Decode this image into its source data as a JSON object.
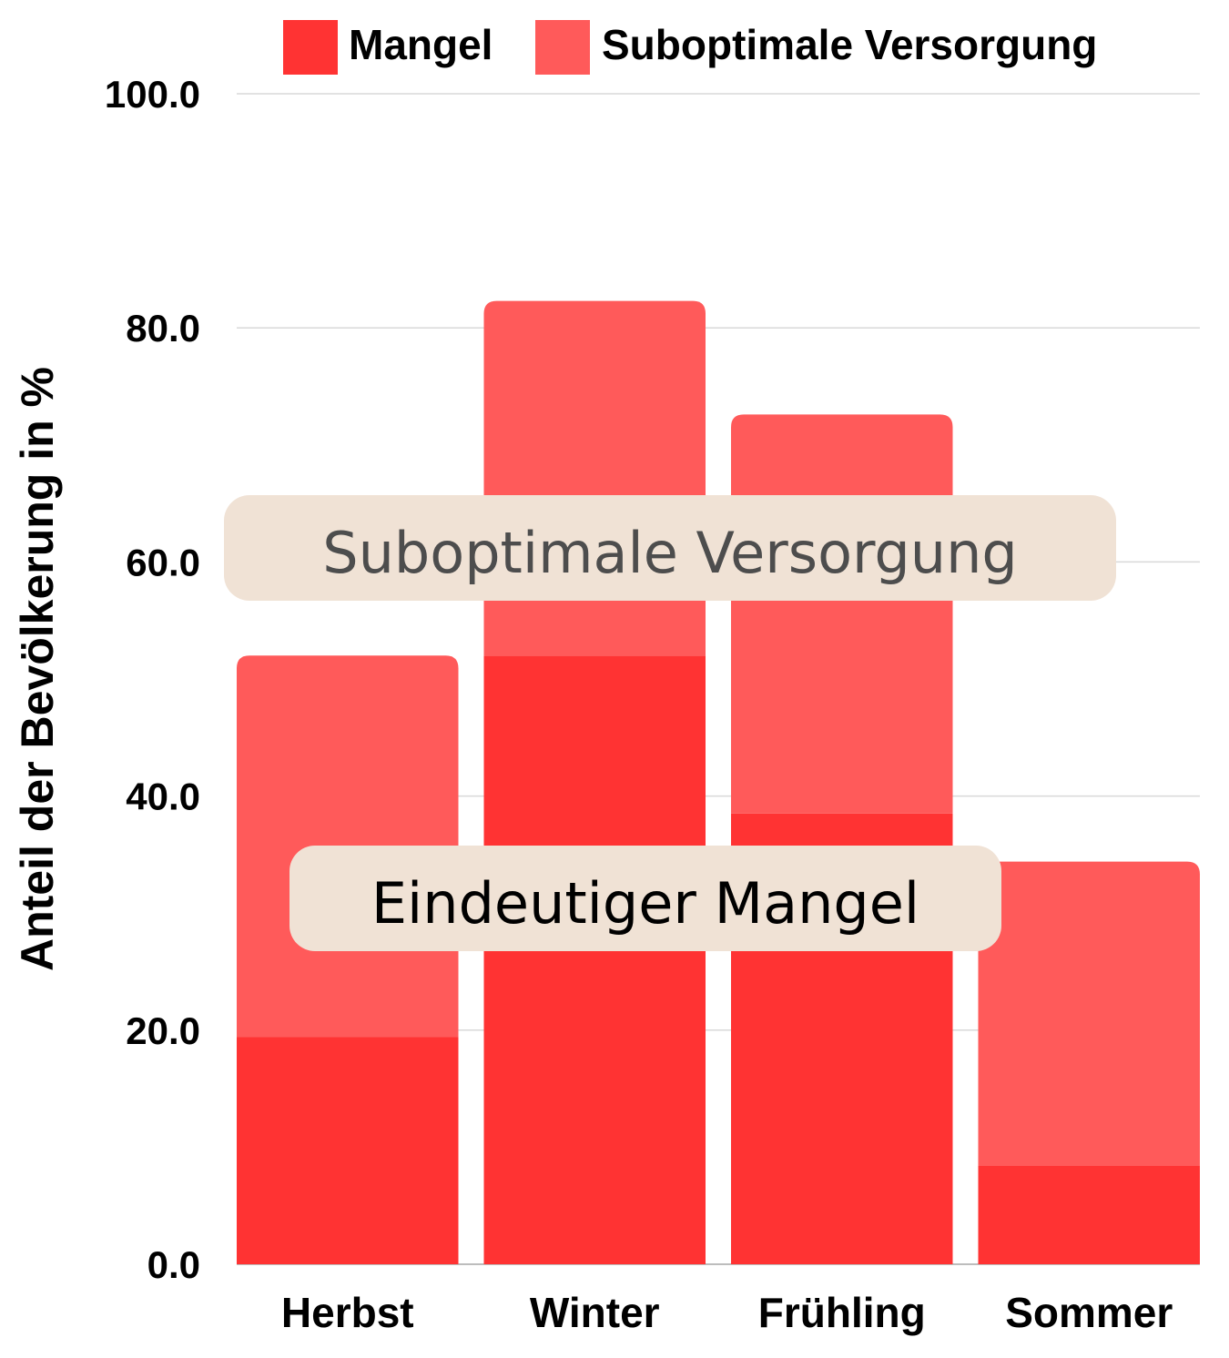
{
  "chart_data": {
    "type": "bar",
    "stacked": true,
    "categories": [
      "Herbst",
      "Winter",
      "Frühling",
      "Sommer"
    ],
    "series": [
      {
        "name": "Mangel",
        "values": [
          19.4,
          52.0,
          38.5,
          8.4
        ],
        "color": "#ff3333"
      },
      {
        "name": "Suboptimale Versorgung",
        "values": [
          32.6,
          30.3,
          34.1,
          26.0
        ],
        "color": "#ff5a5a"
      }
    ],
    "ylabel": "Anteil der Bevölkerung in %",
    "ylim": [
      0,
      100
    ],
    "yticks": [
      "0.0",
      "20.0",
      "40.0",
      "60.0",
      "80.0",
      "100.0"
    ],
    "grid": true,
    "legend": "top",
    "annotations": [
      {
        "text": "Suboptimale Versorgung",
        "color": "#4d4d4d"
      },
      {
        "text": "Eindeutiger Mangel",
        "color": "#000000"
      }
    ],
    "annotation_background": "#f0e2d5"
  }
}
